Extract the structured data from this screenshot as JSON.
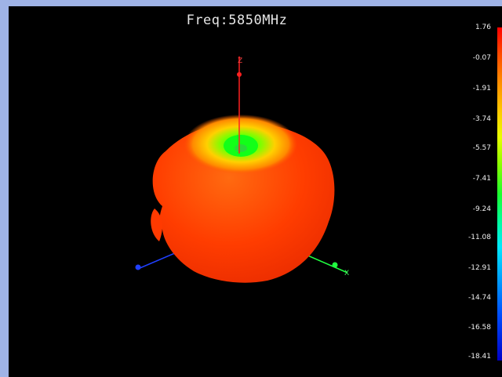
{
  "title": "Freq:5850MHz",
  "axes": {
    "z_label": "Z",
    "x_label": "X"
  },
  "colorbar": {
    "ticks": [
      "1.76",
      "-0.07",
      "-1.91",
      "-3.74",
      "-5.57",
      "-7.41",
      "-9.24",
      "-11.08",
      "-12.91",
      "-14.74",
      "-16.58",
      "-18.41"
    ],
    "top_color": "#ff0000",
    "bottom_color": "#0000c8"
  },
  "colors": {
    "pattern_body": "#ff3a00",
    "pattern_center": "#22ff00",
    "z_axis": "#ff2020",
    "x_axis": "#20ff40",
    "y_axis": "#2040ff",
    "background": "#000000",
    "outer_frame": "#9fb3e6"
  }
}
